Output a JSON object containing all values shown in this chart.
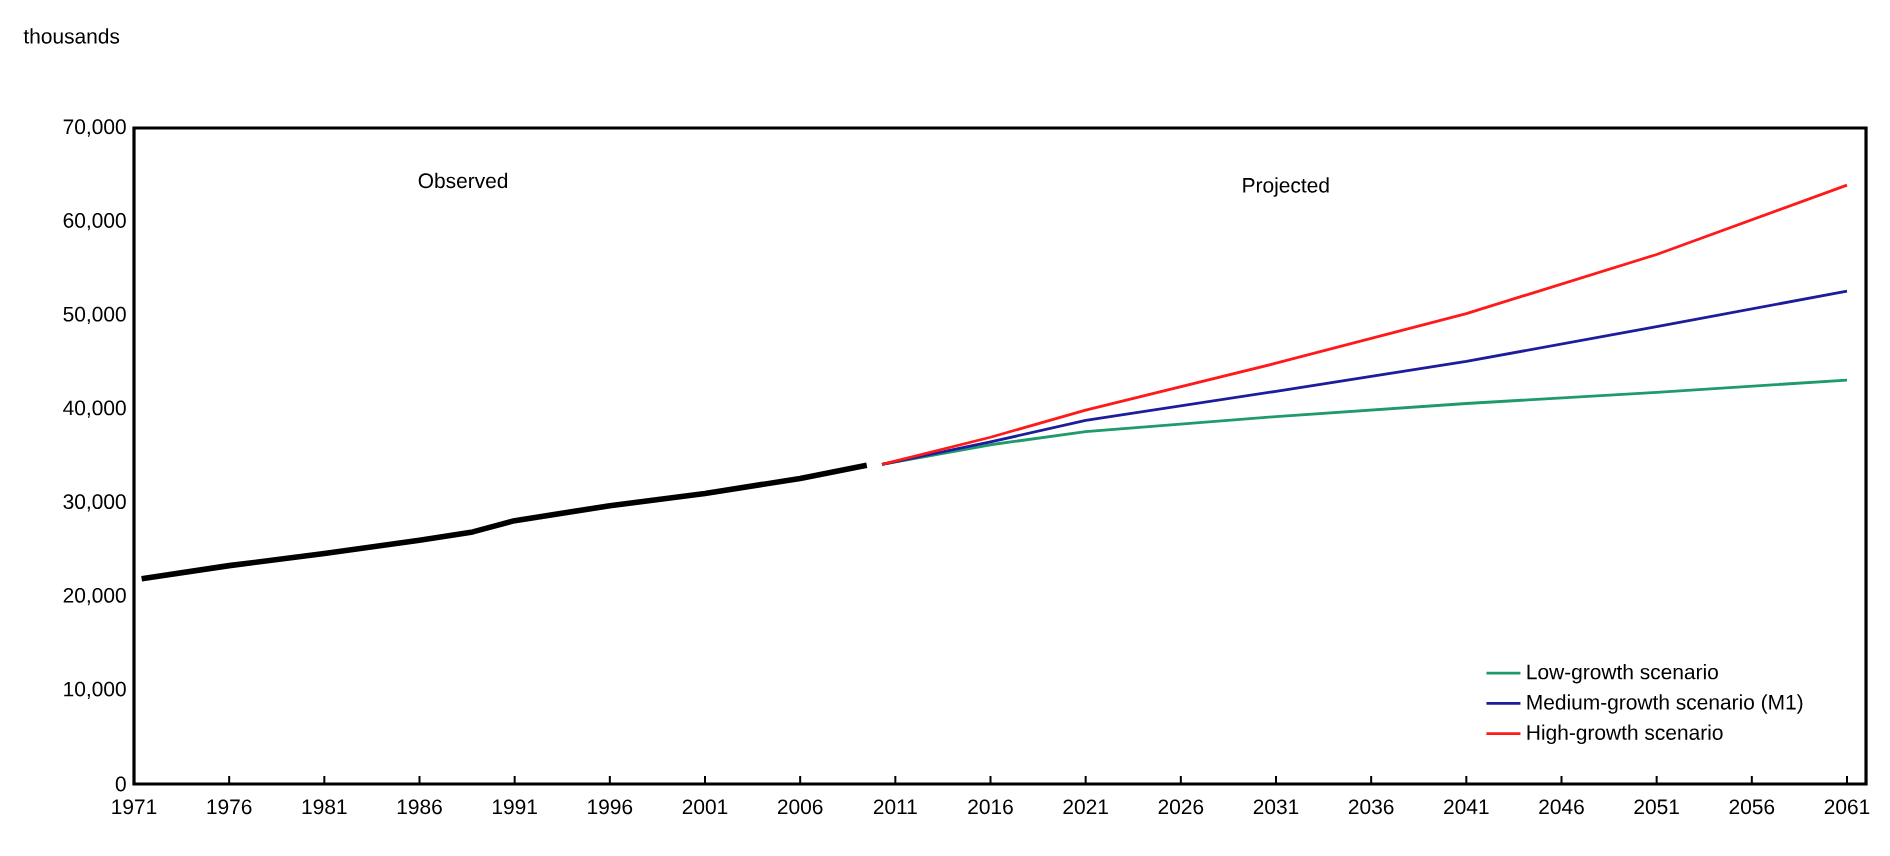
{
  "chart_data": {
    "type": "line",
    "ylabel": "thousands",
    "annotations": [
      "Observed",
      "Projected"
    ],
    "xlim": [
      1971,
      2062
    ],
    "ylim": [
      0,
      70000
    ],
    "xticks": [
      1971,
      1976,
      1981,
      1986,
      1991,
      1996,
      2001,
      2006,
      2011,
      2016,
      2021,
      2026,
      2031,
      2036,
      2041,
      2046,
      2051,
      2056,
      2061
    ],
    "yticks": [
      0,
      {
        "value": 10000,
        "label": "10,000"
      },
      {
        "value": 20000,
        "label": "20,000"
      },
      {
        "value": 30000,
        "label": "30,000"
      },
      {
        "value": 40000,
        "label": "40,000"
      },
      {
        "value": 50000,
        "label": "50,000"
      },
      {
        "value": 60000,
        "label": "60,000"
      },
      {
        "value": 70000,
        "label": "70,000"
      }
    ],
    "grid": false,
    "legend": "bottom right",
    "marker": "none",
    "line_style": "solid",
    "series": [
      {
        "color": "#000000",
        "x": [
          1971.4,
          1976,
          1981,
          1986,
          1988.8,
          1991,
          1996,
          2001,
          2006,
          2009.5
        ],
        "values": [
          21900,
          23300,
          24600,
          26000,
          26900,
          28100,
          29700,
          31000,
          32600,
          34000
        ]
      },
      {
        "name": "Low-growth scenario",
        "color": "#1f9a6a",
        "x": [
          2010.3,
          2016,
          2021,
          2031,
          2041,
          2051,
          2061
        ],
        "values": [
          34100,
          36200,
          37600,
          39200,
          40600,
          41800,
          43100
        ]
      },
      {
        "name": "Medium-growth scenario (M1)",
        "color": "#1c1c9c",
        "x": [
          2010.3,
          2016,
          2021,
          2031,
          2041,
          2051,
          2061
        ],
        "values": [
          34100,
          36500,
          38800,
          41900,
          45100,
          48800,
          52600
        ]
      },
      {
        "name": "High-growth scenario",
        "color": "#ff1a1a",
        "x": [
          2010.3,
          2016,
          2021,
          2031,
          2041,
          2051,
          2061
        ],
        "values": [
          34100,
          37000,
          39900,
          44900,
          50200,
          56500,
          63900
        ]
      }
    ]
  }
}
